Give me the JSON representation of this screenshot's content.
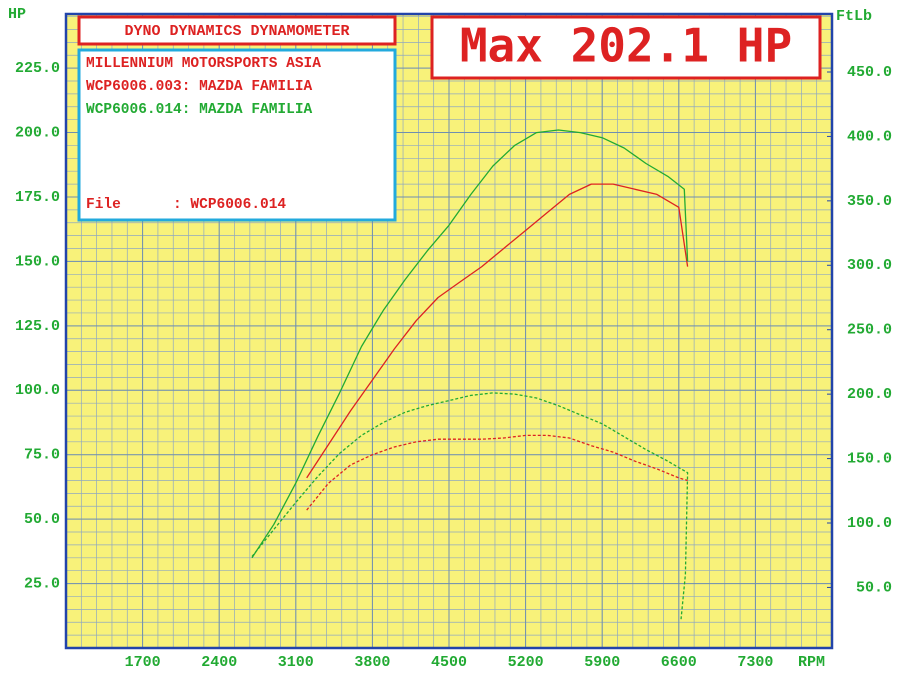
{
  "chart_data": {
    "type": "line",
    "title": "DYNO DYNAMICS DYNAMOMETER",
    "subtitle": "Max 202.1 HP",
    "info_lines": [
      {
        "text": "MILLENNIUM MOTORSPORTS ASIA",
        "color": "#dd2222"
      },
      {
        "text": "File      : WCP6006.014",
        "color": "#dd2222"
      }
    ],
    "ylabel": "HP",
    "y2label": "FtLb",
    "xlabel": "RPM",
    "xlim": [
      1000,
      8000
    ],
    "xticks": [
      1700,
      2400,
      3100,
      3800,
      4500,
      5200,
      5900,
      6600,
      7300
    ],
    "ylim": [
      0,
      246
    ],
    "yticks": [
      {
        "value": 25,
        "label": "25.0"
      },
      {
        "value": 50,
        "label": "50.0"
      },
      {
        "value": 75,
        "label": "75.0"
      },
      {
        "value": 100,
        "label": "100.0"
      },
      {
        "value": 125,
        "label": "125.0"
      },
      {
        "value": 150,
        "label": "150.0"
      },
      {
        "value": 175,
        "label": "175.0"
      },
      {
        "value": 200,
        "label": "200.0"
      },
      {
        "value": 225,
        "label": "225.0"
      }
    ],
    "y2lim": [
      3,
      495
    ],
    "y2ticks": [
      {
        "value": 50,
        "label": "50.0"
      },
      {
        "value": 100,
        "label": "100.0"
      },
      {
        "value": 150,
        "label": "150.0"
      },
      {
        "value": 200,
        "label": "200.0"
      },
      {
        "value": 250,
        "label": "250.0"
      },
      {
        "value": 300,
        "label": "300.0"
      },
      {
        "value": 350,
        "label": "350.0"
      },
      {
        "value": 400,
        "label": "400.0"
      },
      {
        "value": 450,
        "label": "450.0"
      }
    ],
    "grid": true,
    "series": [
      {
        "name": "WCP6006.003: MAZDA FAMILIA",
        "color": "#dd2222",
        "line_style": "solid",
        "x": [
          3200,
          3400,
          3600,
          3800,
          4000,
          4200,
          4400,
          4600,
          4800,
          5000,
          5200,
          5400,
          5600,
          5800,
          6000,
          6200,
          6400,
          6600,
          6680
        ],
        "values": [
          66,
          79,
          92,
          104,
          116,
          127,
          136,
          142,
          148,
          155,
          162,
          169,
          176,
          180,
          180,
          178,
          176,
          171,
          148
        ]
      },
      {
        "name": "WCP6006.014: MAZDA FAMILIA",
        "color": "#22aa33",
        "line_style": "solid",
        "x": [
          2700,
          2900,
          3100,
          3300,
          3500,
          3700,
          3900,
          4100,
          4300,
          4500,
          4700,
          4900,
          5100,
          5300,
          5500,
          5700,
          5900,
          6100,
          6300,
          6500,
          6650,
          6680
        ],
        "values": [
          35,
          48,
          64,
          82,
          99,
          117,
          131,
          143,
          154,
          164,
          176,
          187,
          195,
          200,
          201,
          200,
          198,
          194,
          188,
          183,
          178,
          150
        ]
      },
      {
        "color": "#dd2222",
        "axis": "y2",
        "line_style": "dashed",
        "x": [
          3200,
          3400,
          3600,
          3800,
          4000,
          4200,
          4400,
          4600,
          4800,
          5000,
          5200,
          5400,
          5600,
          5800,
          6000,
          6200,
          6400,
          6600,
          6680
        ],
        "values": [
          110,
          131,
          145,
          153,
          159,
          163,
          165,
          165,
          165,
          166,
          168,
          168,
          166,
          160,
          155,
          148,
          142,
          135,
          133
        ]
      },
      {
        "color": "#22aa33",
        "axis": "y2",
        "line_style": "dashed",
        "x": [
          2700,
          2900,
          3100,
          3300,
          3500,
          3700,
          3900,
          4100,
          4300,
          4500,
          4700,
          4900,
          5100,
          5300,
          5500,
          5700,
          5900,
          6100,
          6300,
          6500,
          6680,
          6660,
          6620
        ],
        "values": [
          74,
          95,
          116,
          136,
          154,
          168,
          178,
          186,
          191,
          195,
          199,
          201,
          200,
          197,
          191,
          184,
          177,
          167,
          157,
          148,
          139,
          60,
          25
        ]
      }
    ]
  }
}
